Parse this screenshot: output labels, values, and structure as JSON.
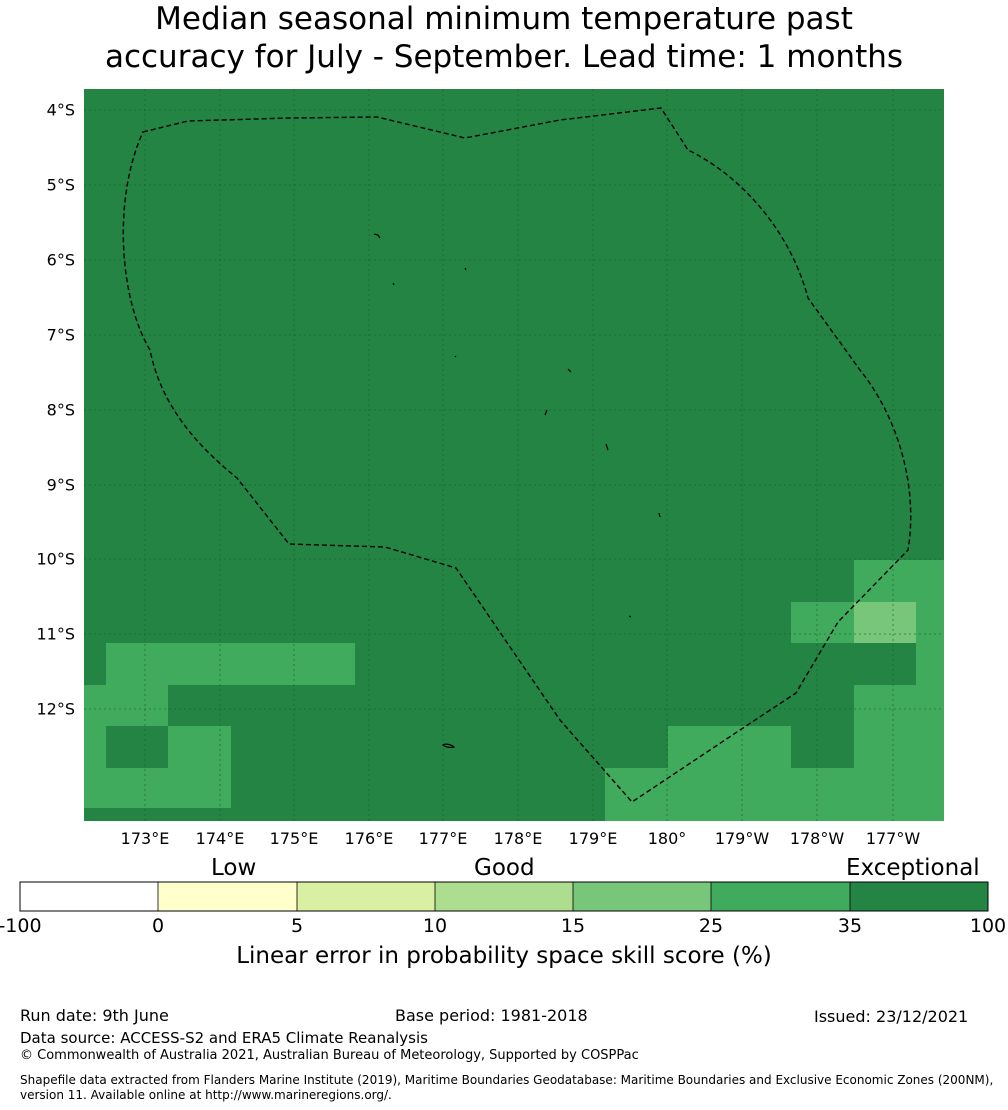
{
  "title": {
    "line1": "Median seasonal minimum temperature past",
    "line2": "accuracy for July - September. Lead time: 1 months"
  },
  "map": {
    "lat_labels": [
      "4°S",
      "5°S",
      "6°S",
      "7°S",
      "8°S",
      "9°S",
      "10°S",
      "11°S",
      "12°S"
    ],
    "lon_labels": [
      "173°E",
      "174°E",
      "175°E",
      "176°E",
      "177°E",
      "178°E",
      "179°E",
      "180°",
      "179°W",
      "178°W",
      "177°W"
    ],
    "colors": {
      "exceptional": "#238443",
      "band_25_35": "#41ab5d",
      "band_15_25": "#78c679",
      "outline": "#000000"
    },
    "boundary_style": "dashed"
  },
  "colorbar": {
    "category_labels": [
      "Low",
      "Good",
      "Exceptional"
    ],
    "tick_labels": [
      "-100",
      "0",
      "5",
      "10",
      "15",
      "25",
      "35",
      "100"
    ],
    "colors": [
      "#ffffff",
      "#ffffcc",
      "#d9f0a3",
      "#addd8e",
      "#78c679",
      "#41ab5d",
      "#238443"
    ],
    "axis_label": "Linear error in probability space skill score (%)"
  },
  "footer": {
    "run_date": "Run date: 9th June",
    "base_period": "Base period: 1981-2018",
    "issued": "Issued: 23/12/2021",
    "data_source": "Data source: ACCESS-S2 and ERA5 Climate Reanalysis",
    "copyright": "© Commonwealth of Australia 2021, Australian Bureau of Meteorology, Supported by COSPPac",
    "shapefile_line1": "Shapefile data extracted from Flanders Marine Institute (2019), Maritime Boundaries Geodatabase: Maritime Boundaries and Exclusive Economic Zones (200NM),",
    "shapefile_line2": "version 11. Available online at http://www.marineregions.org/."
  }
}
